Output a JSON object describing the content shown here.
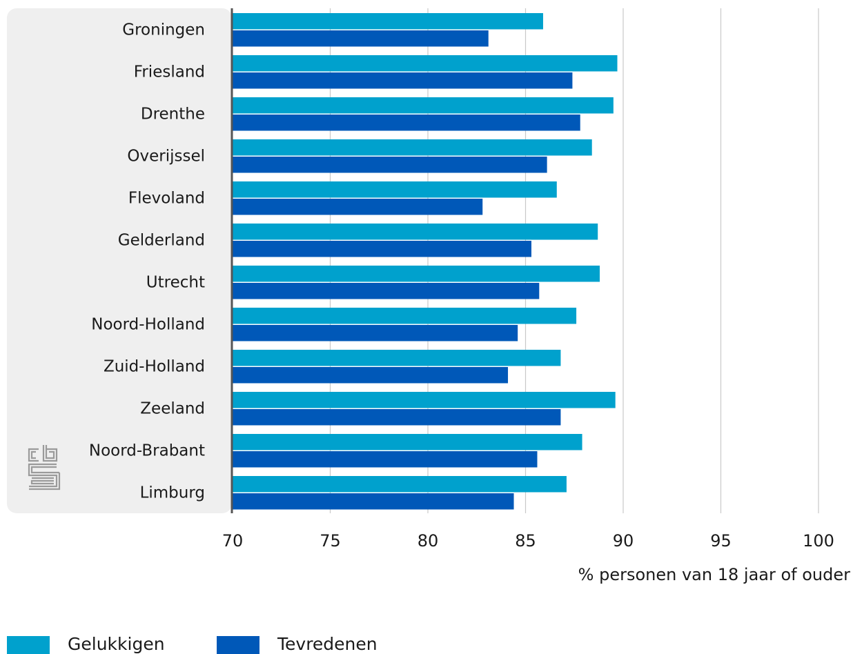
{
  "colors": {
    "gelukkigen": "#00A1CD",
    "tevredenen": "#0058B8",
    "label_panel": "#EFEFEF",
    "gridline": "#C8C8C8",
    "axis": "#555555",
    "logo": "#9A9A9A"
  },
  "logo": {
    "name": "cbs-logo",
    "text": "cbs"
  },
  "chart_data": {
    "type": "bar",
    "orientation": "horizontal",
    "categories": [
      "Groningen",
      "Friesland",
      "Drenthe",
      "Overijssel",
      "Flevoland",
      "Gelderland",
      "Utrecht",
      "Noord-Holland",
      "Zuid-Holland",
      "Zeeland",
      "Noord-Brabant",
      "Limburg"
    ],
    "series": [
      {
        "name": "Gelukkigen",
        "values": [
          85.9,
          89.7,
          89.5,
          88.4,
          86.6,
          88.7,
          88.8,
          87.6,
          86.8,
          89.6,
          87.9,
          87.1
        ]
      },
      {
        "name": "Tevredenen",
        "values": [
          83.1,
          87.4,
          87.8,
          86.1,
          82.8,
          85.3,
          85.7,
          84.6,
          84.1,
          86.8,
          85.6,
          84.4
        ]
      }
    ],
    "xlabel": "% personen van 18 jaar of ouder",
    "xlim": [
      70,
      100
    ],
    "xticks": [
      70,
      75,
      80,
      85,
      90,
      95,
      100
    ],
    "grid": true,
    "legend_position": "bottom-left"
  }
}
